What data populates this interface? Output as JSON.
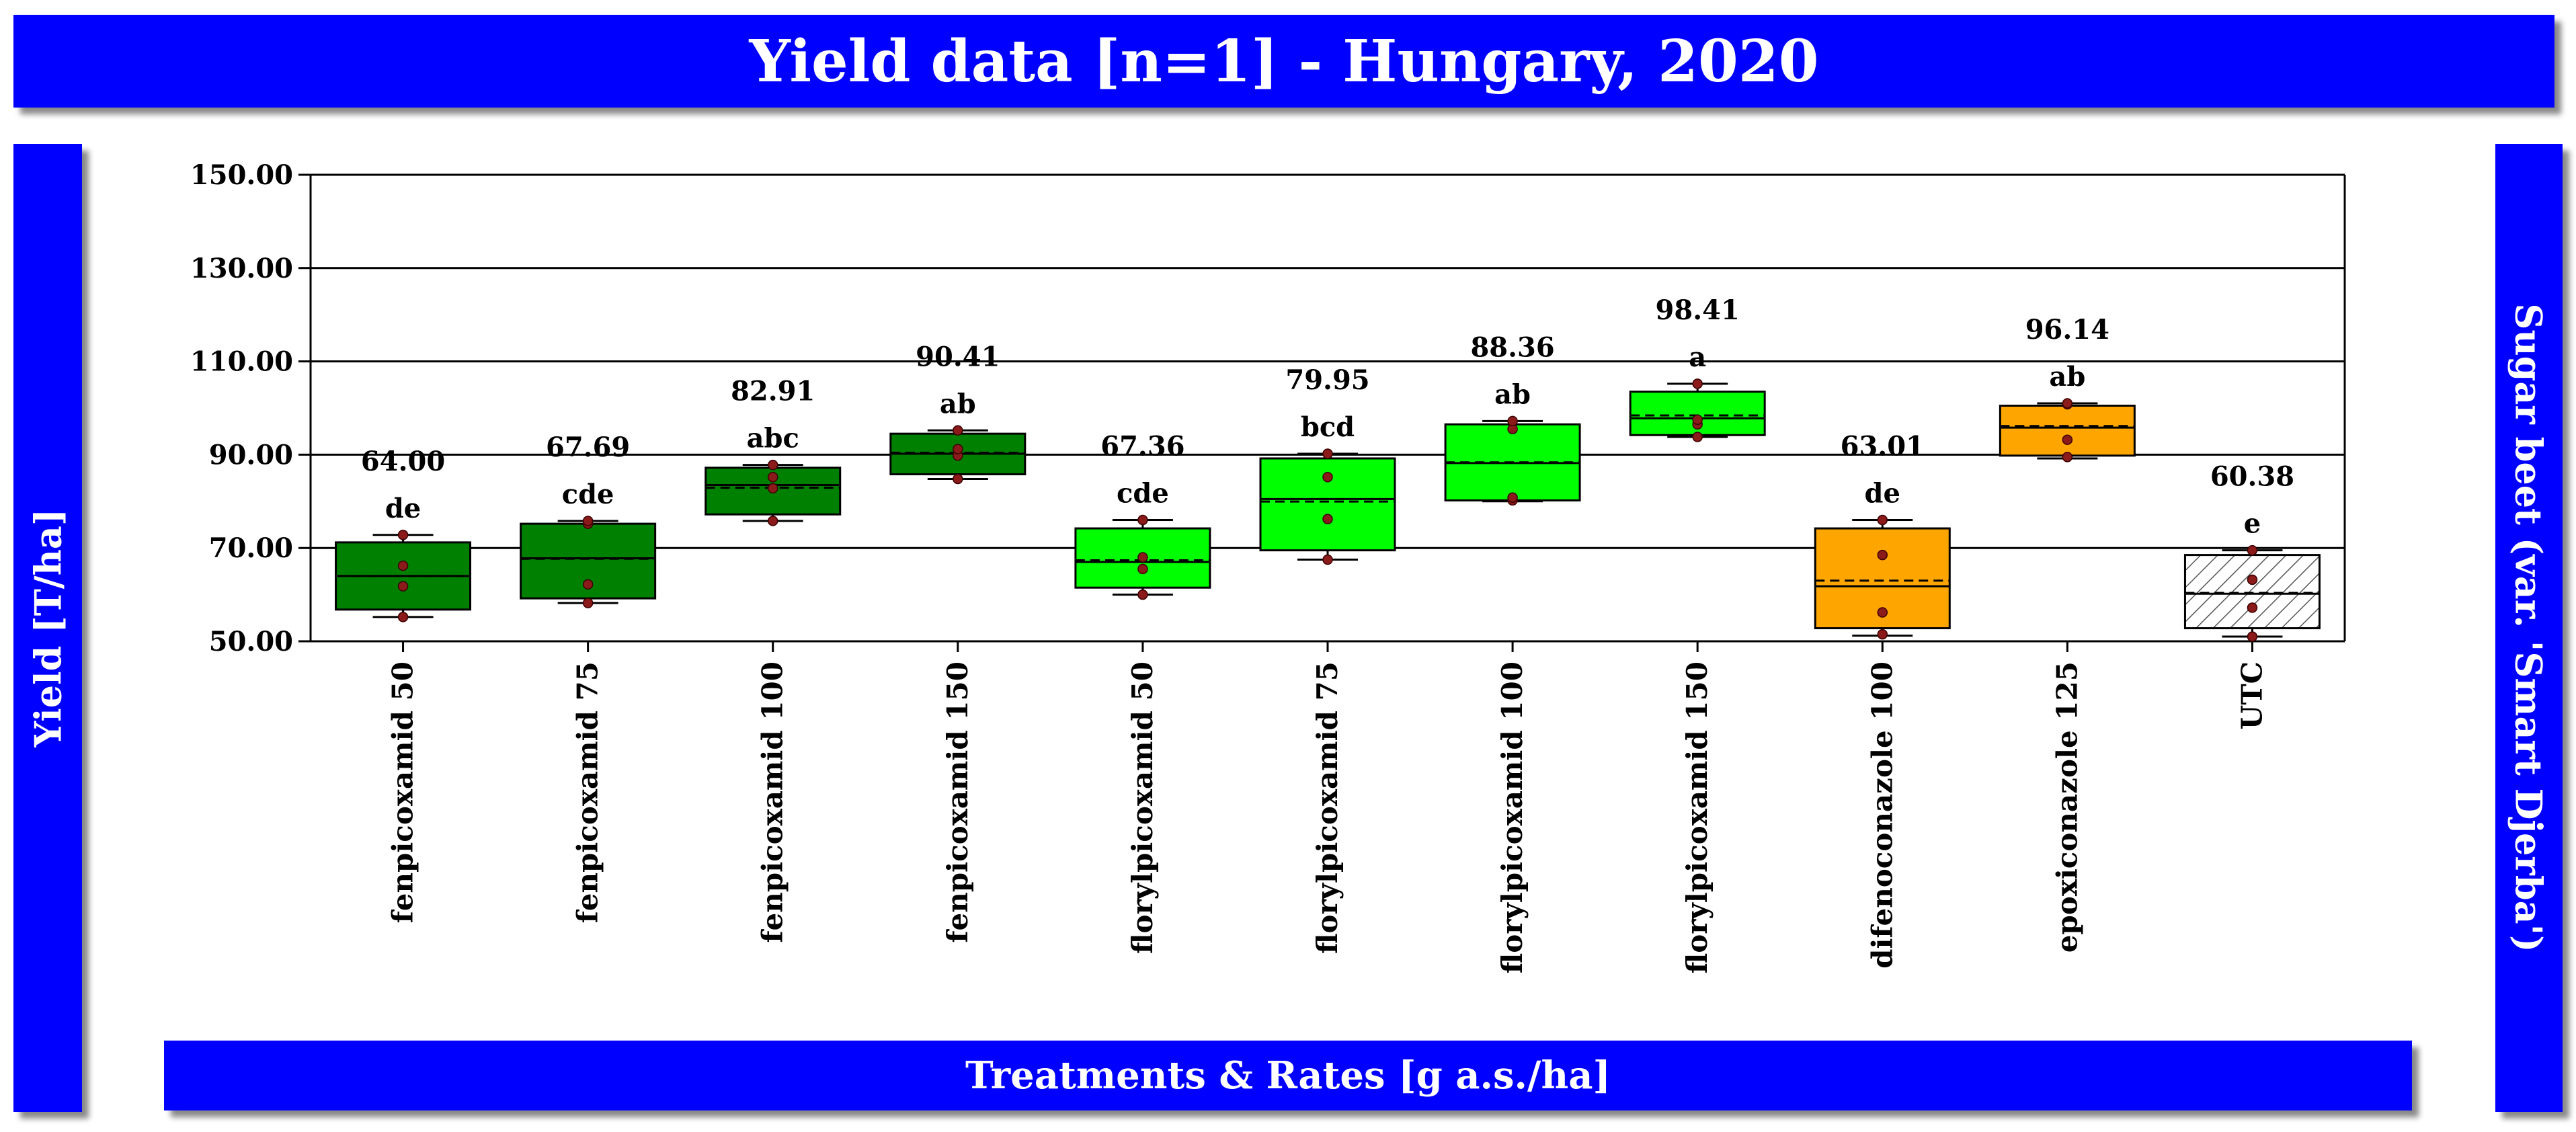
{
  "title": "Yield data [n=1] - Hungary, 2020",
  "ylabel": "Yield [T/ha]",
  "xlabel": "Treatments & Rates [g a.s./ha]",
  "side_label": "Sugar beet (var. 'Smart Djerba')",
  "colors": {
    "banner": "#0000ff",
    "dark_green": "#008000",
    "light_green": "#00ff00",
    "orange": "#ffa500",
    "utc_hatch": "#ffffff",
    "point": "#8b1a1a"
  },
  "chart_data": {
    "type": "box",
    "ylim": [
      50,
      150
    ],
    "yticks": [
      "50.00",
      "70.00",
      "90.00",
      "110.00",
      "130.00",
      "150.00"
    ],
    "grid": true,
    "categories": [
      "fenpicoxamid 50",
      "fenpicoxamid 75",
      "fenpicoxamid 100",
      "fenpicoxamid 150",
      "florylpicoxamid 50",
      "florylpicoxamid 75",
      "florylpicoxamid 100",
      "florylpicoxamid 150",
      "difenoconazole 100",
      "epoxiconazole 125",
      "UTC"
    ],
    "groups": [
      {
        "category": "fenpicoxamid 50",
        "mean": "64.00",
        "letter": "de",
        "fill": "dark_green",
        "min": 55.2,
        "q1": 56.8,
        "median": 64.0,
        "q3": 71.2,
        "max": 72.8,
        "points": [
          55.2,
          61.8,
          66.2,
          72.8
        ]
      },
      {
        "category": "fenpicoxamid 75",
        "mean": "67.69",
        "letter": "cde",
        "fill": "dark_green",
        "min": 58.2,
        "q1": 59.2,
        "median": 67.8,
        "q3": 75.2,
        "max": 75.8,
        "points": [
          58.2,
          62.2,
          75.2,
          75.8
        ]
      },
      {
        "category": "fenpicoxamid 100",
        "mean": "82.91",
        "letter": "abc",
        "fill": "dark_green",
        "min": 75.8,
        "q1": 77.2,
        "median": 83.5,
        "q3": 87.2,
        "max": 87.8,
        "points": [
          75.8,
          82.8,
          85.2,
          87.8
        ]
      },
      {
        "category": "fenpicoxamid 150",
        "mean": "90.41",
        "letter": "ab",
        "fill": "dark_green",
        "min": 84.8,
        "q1": 85.8,
        "median": 90.2,
        "q3": 94.5,
        "max": 95.2,
        "points": [
          84.8,
          89.8,
          91.2,
          95.2
        ]
      },
      {
        "category": "florylpicoxamid 50",
        "mean": "67.36",
        "letter": "cde",
        "fill": "light_green",
        "min": 60.0,
        "q1": 61.5,
        "median": 67.0,
        "q3": 74.2,
        "max": 76.0,
        "points": [
          60.0,
          65.5,
          68.0,
          76.0
        ]
      },
      {
        "category": "florylpicoxamid 75",
        "mean": "79.95",
        "letter": "bcd",
        "fill": "light_green",
        "min": 67.5,
        "q1": 69.5,
        "median": 80.5,
        "q3": 89.2,
        "max": 90.2,
        "points": [
          67.5,
          76.2,
          85.2,
          90.2
        ]
      },
      {
        "category": "florylpicoxamid 100",
        "mean": "88.36",
        "letter": "ab",
        "fill": "light_green",
        "min": 80.0,
        "q1": 80.2,
        "median": 88.2,
        "q3": 96.5,
        "max": 97.2,
        "points": [
          80.2,
          80.8,
          95.5,
          97.2
        ]
      },
      {
        "category": "florylpicoxamid 150",
        "mean": "98.41",
        "letter": "a",
        "fill": "light_green",
        "min": 93.8,
        "q1": 94.2,
        "median": 97.8,
        "q3": 103.5,
        "max": 105.2,
        "points": [
          93.8,
          96.5,
          97.5,
          105.2
        ]
      },
      {
        "category": "difenoconazole 100",
        "mean": "63.01",
        "letter": "de",
        "fill": "orange",
        "min": 51.2,
        "q1": 52.8,
        "median": 61.8,
        "q3": 74.2,
        "max": 76.0,
        "points": [
          51.5,
          56.2,
          68.5,
          76.0
        ]
      },
      {
        "category": "epoxiconazole 125",
        "mean": "96.14",
        "letter": "ab",
        "fill": "orange",
        "min": 89.2,
        "q1": 89.8,
        "median": 95.8,
        "q3": 100.5,
        "max": 101.0,
        "points": [
          89.5,
          93.2,
          100.8,
          101.0
        ]
      },
      {
        "category": "UTC",
        "mean": "60.38",
        "letter": "e",
        "fill": "utc_hatch",
        "min": 51.0,
        "q1": 52.8,
        "median": 60.2,
        "q3": 68.5,
        "max": 69.5,
        "points": [
          51.0,
          57.2,
          63.2,
          69.5
        ]
      }
    ]
  }
}
